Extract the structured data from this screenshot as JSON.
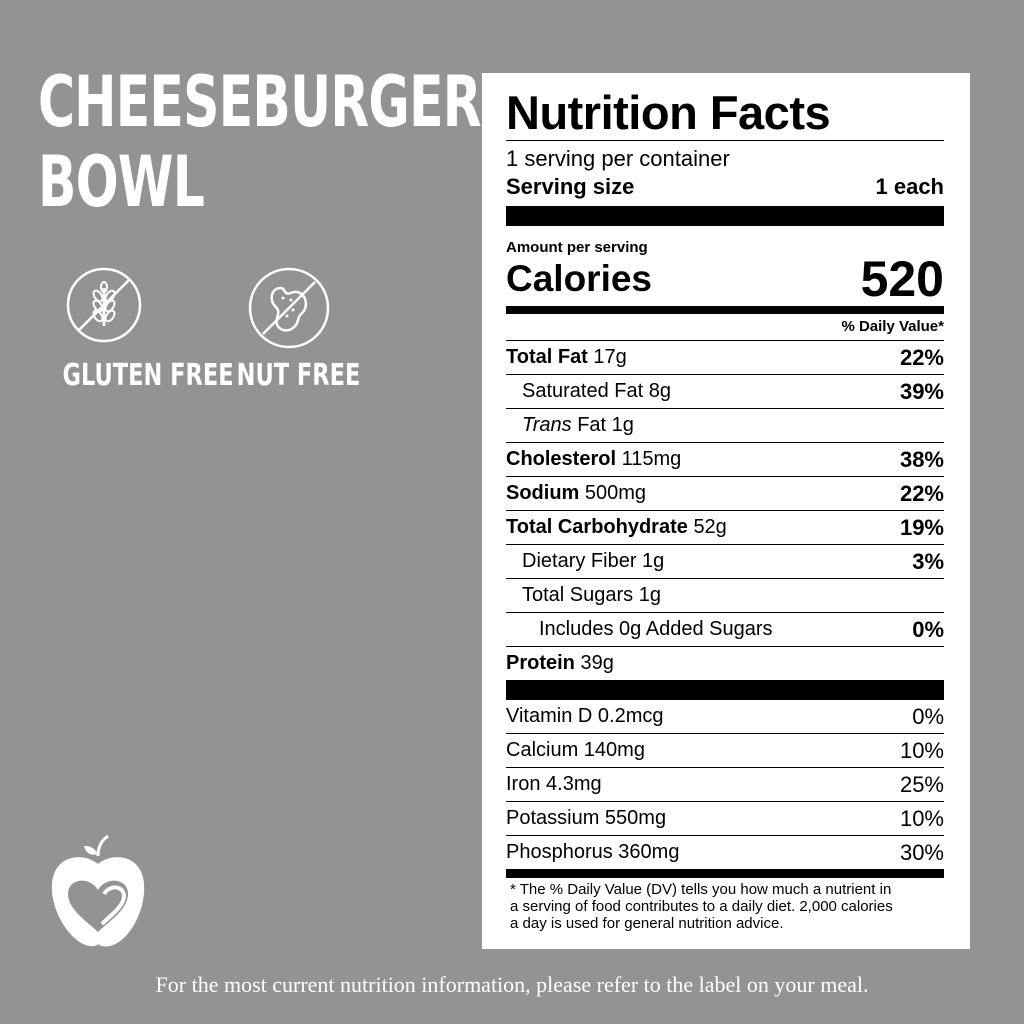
{
  "product": {
    "title_line1": "CHEESEBURGER",
    "title_line2": "BOWL"
  },
  "badges": [
    {
      "label": "GLUTEN FREE",
      "icon": "wheat-crossed-icon"
    },
    {
      "label": "NUT FREE",
      "icon": "peanut-crossed-icon"
    }
  ],
  "nutrition": {
    "heading": "Nutrition Facts",
    "servings": "1 serving per container",
    "serving_size_label": "Serving size",
    "serving_size_value": "1 each",
    "amount_per_serving": "Amount per serving",
    "calories_label": "Calories",
    "calories_value": "520",
    "dv_header": "% Daily Value*",
    "total_fat": {
      "label": "Total Fat",
      "amount": "17g",
      "dv": "22%"
    },
    "saturated_fat": {
      "label": "Saturated Fat 8g",
      "dv": "39%"
    },
    "trans_fat": {
      "label_italic": "Trans",
      "label_rest": "Fat 1g"
    },
    "cholesterol": {
      "label": "Cholesterol",
      "amount": "115mg",
      "dv": "38%"
    },
    "sodium": {
      "label": "Sodium",
      "amount": "500mg",
      "dv": "22%"
    },
    "total_carb": {
      "label": "Total Carbohydrate",
      "amount": "52g",
      "dv": "19%"
    },
    "fiber": {
      "label": "Dietary Fiber 1g",
      "dv": "3%"
    },
    "sugars": {
      "label": "Total Sugars 1g"
    },
    "added_sugars": {
      "label": "Includes 0g Added Sugars",
      "dv": "0%"
    },
    "protein": {
      "label": "Protein",
      "amount": "39g"
    },
    "vitamins": [
      {
        "label": "Vitamin D 0.2mcg",
        "dv": "0%"
      },
      {
        "label": "Calcium 140mg",
        "dv": "10%"
      },
      {
        "label": "Iron 4.3mg",
        "dv": "25%"
      },
      {
        "label": "Potassium 550mg",
        "dv": "10%"
      },
      {
        "label": "Phosphorus 360mg",
        "dv": "30%"
      }
    ],
    "footnote_line1": "* The % Daily Value (DV) tells you how much a nutrient in",
    "footnote_line2": "a serving of food contributes to a daily diet. 2,000 calories",
    "footnote_line3": "a day is used for general nutrition advice."
  },
  "logo": {
    "icon": "apple-heart-icon"
  },
  "footer": "For the most current nutrition information, please refer to the label on your meal."
}
